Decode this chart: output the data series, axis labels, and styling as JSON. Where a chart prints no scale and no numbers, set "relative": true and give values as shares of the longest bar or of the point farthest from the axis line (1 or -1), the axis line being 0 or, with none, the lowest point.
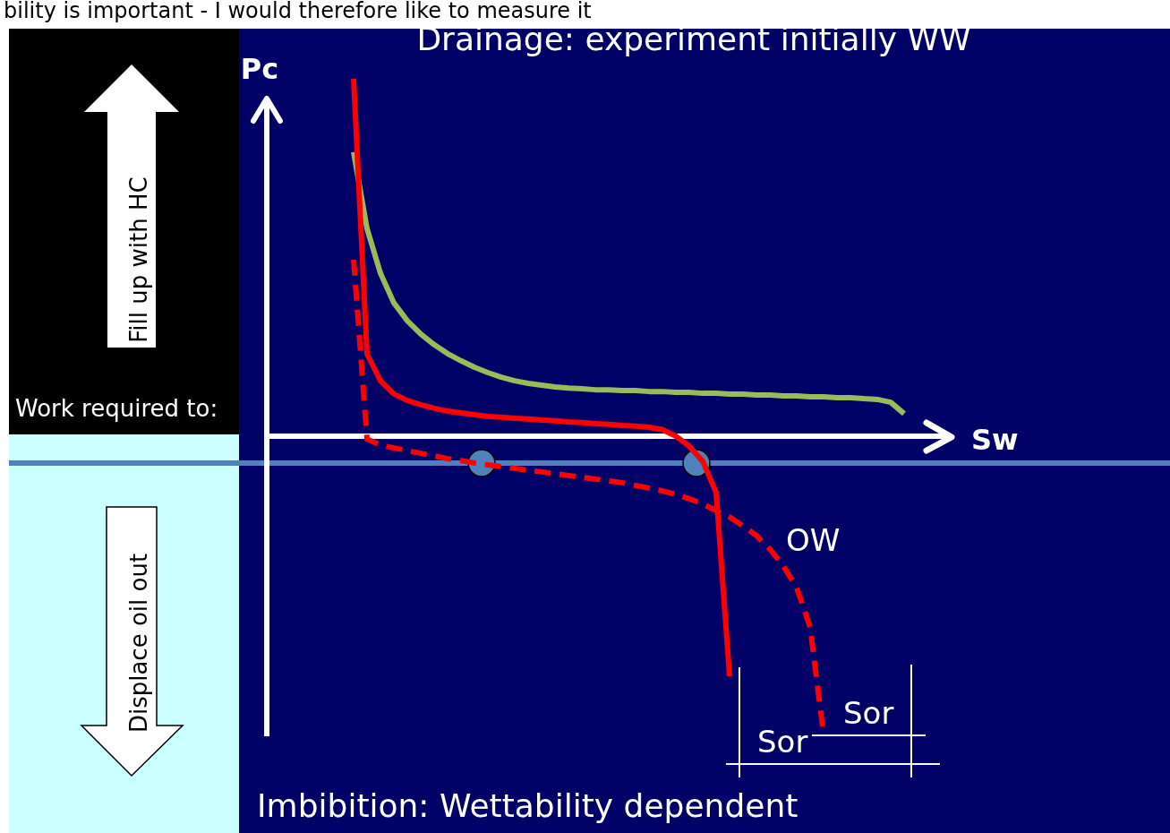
{
  "chart_data": {
    "type": "line",
    "relative": true,
    "title": "Drainage: experiment initially WW",
    "xlabel": "Sw",
    "ylabel": "Pc",
    "categories": [
      null,
      null,
      null,
      null,
      null,
      null,
      null,
      null,
      null,
      null,
      null,
      null,
      null,
      null,
      null,
      null,
      null,
      null,
      null,
      null,
      null,
      null,
      null,
      null,
      null,
      null,
      null,
      null,
      null,
      null,
      null,
      null,
      null,
      null,
      null,
      null,
      null,
      null,
      null,
      null,
      null,
      null,
      null
    ],
    "series": [
      {
        "color": "#9bbb59",
        "line_style": "solid",
        "values": [
          0.795,
          0.581,
          0.456,
          0.373,
          0.323,
          0.286,
          0.256,
          0.231,
          0.211,
          0.193,
          0.178,
          0.165,
          0.155,
          0.148,
          0.143,
          0.138,
          0.135,
          0.133,
          0.13,
          0.13,
          0.128,
          0.128,
          0.125,
          0.125,
          0.123,
          0.123,
          0.12,
          0.12,
          0.118,
          0.118,
          0.115,
          0.115,
          0.113,
          0.113,
          0.11,
          0.11,
          0.108,
          0.108,
          0.105,
          0.103,
          0.095,
          0.063,
          null
        ]
      },
      {
        "color": "#ff0000",
        "line_style": "solid",
        "values": [
          1.0,
          0.23,
          0.155,
          0.118,
          0.1,
          0.088,
          0.078,
          0.07,
          0.065,
          0.06,
          0.055,
          0.053,
          0.05,
          0.048,
          0.045,
          0.043,
          0.04,
          0.038,
          0.035,
          0.033,
          0.03,
          0.028,
          0.025,
          0.018,
          0,
          -0.028,
          -0.07,
          -0.158,
          -0.672,
          null,
          null,
          null,
          null,
          null,
          null,
          null,
          null,
          null,
          null,
          null,
          null,
          null,
          null
        ]
      },
      {
        "color": "#ff0000",
        "line_style": "dashed",
        "values": [
          0.494,
          -0.008,
          -0.025,
          -0.033,
          -0.04,
          -0.048,
          -0.055,
          -0.063,
          -0.068,
          -0.075,
          -0.08,
          -0.085,
          -0.09,
          -0.095,
          -0.1,
          -0.105,
          -0.11,
          -0.115,
          -0.12,
          -0.125,
          -0.13,
          -0.138,
          -0.145,
          -0.153,
          -0.163,
          -0.175,
          -0.19,
          -0.208,
          -0.226,
          -0.251,
          -0.278,
          -0.316,
          -0.363,
          -0.424,
          -0.534,
          -0.835,
          null,
          null,
          null,
          null,
          null,
          null,
          null
        ]
      }
    ],
    "ref_lines": [
      {
        "axis": "y",
        "value": -0.075,
        "color": "#4f81bd"
      }
    ],
    "annotations": [
      "bility is important - I would therefore like to measure it",
      "Imbibition: Wettability dependent",
      "OW",
      "Sor",
      "Sor",
      "Work required to:",
      "Fill up with HC",
      "Displace oil out"
    ]
  }
}
